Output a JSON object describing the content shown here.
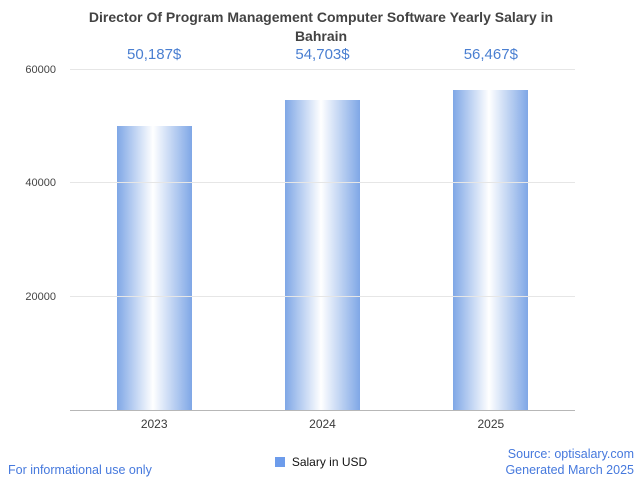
{
  "title": "Director Of Program Management Computer Software Yearly Salary in Bahrain",
  "chart_data": {
    "type": "bar",
    "title": "Director Of Program Management Computer Software Yearly Salary in Bahrain",
    "categories": [
      "2023",
      "2024",
      "2025"
    ],
    "values": [
      50187,
      54703,
      56467
    ],
    "value_labels": [
      "50,187$",
      "54,703$",
      "56,467$"
    ],
    "series": [
      {
        "name": "Salary in USD",
        "values": [
          50187,
          54703,
          56467
        ]
      }
    ],
    "xlabel": "",
    "ylabel": "",
    "ylim": [
      0,
      60000
    ],
    "yticks": [
      20000,
      40000,
      60000
    ],
    "ytick_labels": [
      "20000",
      "40000",
      "60000"
    ],
    "grid": true,
    "legend_position": "bottom"
  },
  "legend": {
    "label": "Salary in USD"
  },
  "footer": {
    "disclaimer": "For informational use only",
    "source": "Source: optisalary.com",
    "generated": "Generated March 2025"
  },
  "colors": {
    "accent": "#4a7fd1",
    "link": "#4679dd",
    "bar-edge": "#7fa7e6",
    "bar-highlight": "#ffffff",
    "legend-marker": "#6d9ceb",
    "grid": "#e6e6e6",
    "axis": "#b7b7b7",
    "title-text": "#434343",
    "tick-text": "#444444"
  }
}
